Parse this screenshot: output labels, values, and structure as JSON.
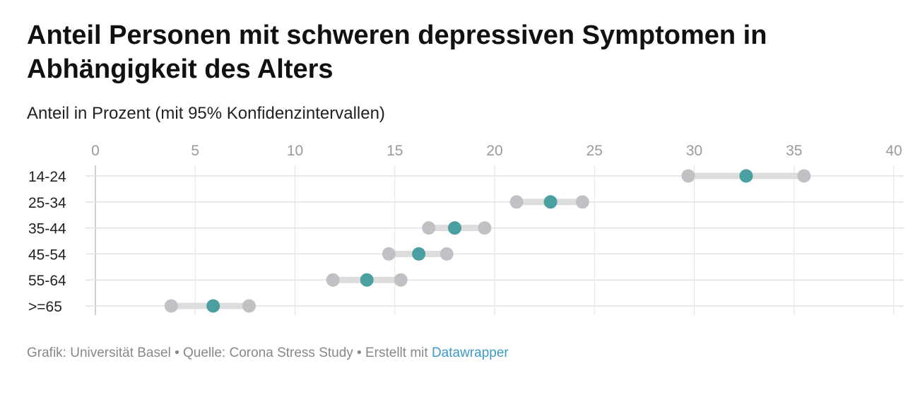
{
  "title": "Anteil Personen mit schweren depressiven Symptomen in Abhängigkeit des Alters",
  "subtitle": "Anteil in Prozent (mit 95% Konfidenzintervallen)",
  "footer": {
    "source_text": "Grafik: Universität Basel • Quelle: Corona Stress Study • Erstellt mit",
    "link_text": "Datawrapper"
  },
  "colors": {
    "estimate": "#4a9fa0",
    "ci_point": "#bfc1c5",
    "ci_bar": "#dddddd",
    "grid": "#e2e2e2",
    "tick_text": "#9a9a9a",
    "category_text": "#222222"
  },
  "chart_data": {
    "type": "range_dot",
    "title": "Anteil Personen mit schweren depressiven Symptomen in Abhängigkeit des Alters",
    "subtitle": "Anteil in Prozent (mit 95% Konfidenzintervallen)",
    "xlim": [
      0,
      40
    ],
    "xticks": [
      0,
      5,
      10,
      15,
      20,
      25,
      30,
      35,
      40
    ],
    "x_axis_position": "top",
    "grid": true,
    "categories": [
      "14-24",
      "25-34",
      "35-44",
      "45-54",
      "55-64",
      ">=65"
    ],
    "lower": [
      29.7,
      21.1,
      16.7,
      14.7,
      11.9,
      3.8
    ],
    "estimate": [
      32.6,
      22.8,
      18.0,
      16.2,
      13.6,
      5.9
    ],
    "upper": [
      35.5,
      24.4,
      19.5,
      17.6,
      15.3,
      7.7
    ]
  }
}
